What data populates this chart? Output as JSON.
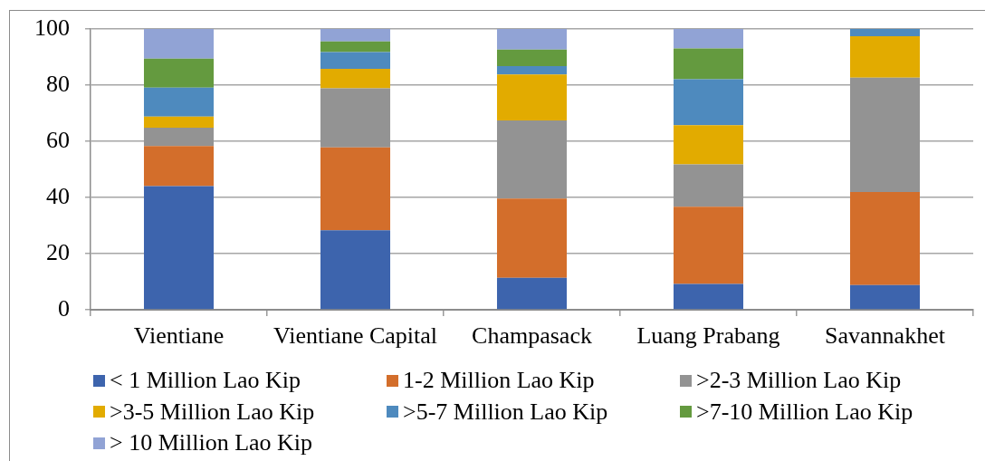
{
  "chart_data": {
    "type": "bar",
    "categories": [
      "Vientiane",
      "Vientiane Capital",
      "Champasack",
      "Luang Prabang",
      "Savannakhet"
    ],
    "series": [
      {
        "name": "< 1 Million Lao Kip",
        "color": "#3d64ad",
        "values": [
          44,
          28.3,
          11.4,
          9.2,
          8.8
        ]
      },
      {
        "name": "1-2 Million Lao Kip",
        "color": "#d36e2b",
        "values": [
          14.3,
          29.5,
          28.2,
          27.5,
          33.1
        ]
      },
      {
        "name": ">2-3 Million Lao Kip",
        "color": "#939393",
        "values": [
          6.5,
          21.1,
          27.8,
          15.1,
          40.8
        ]
      },
      {
        "name": ">3-5 Million Lao Kip",
        "color": "#e2ab00",
        "values": [
          4,
          6.9,
          16.4,
          13.9,
          14.7
        ]
      },
      {
        "name": ">5-7 Million Lao Kip",
        "color": "#4e8abe",
        "values": [
          10.3,
          6,
          3,
          16.4,
          2.6
        ]
      },
      {
        "name": ">7-10 Million Lao Kip",
        "color": "#649a3f",
        "values": [
          10.3,
          3.8,
          5.9,
          11,
          0
        ]
      },
      {
        "name": "> 10 Million Lao Kip",
        "color": "#91a3d5",
        "values": [
          10.6,
          4.4,
          7.3,
          6.9,
          0
        ]
      }
    ],
    "stacked": true,
    "ylim": [
      0,
      100
    ],
    "yticks": [
      0,
      20,
      40,
      60,
      80,
      100
    ],
    "grid": "y",
    "legend": "bottom"
  }
}
